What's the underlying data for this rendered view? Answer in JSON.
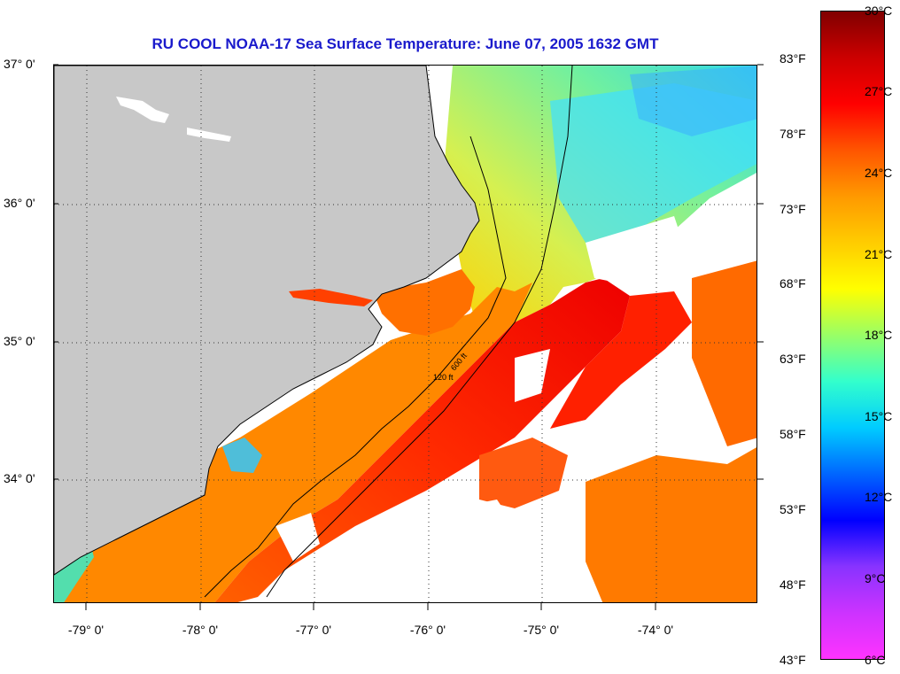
{
  "title": "RU COOL  NOAA-17  Sea Surface Temperature:  June 07, 2005 1632 GMT",
  "map": {
    "lat_labels": [
      "37° 0'",
      "36° 0'",
      "35° 0'",
      "34° 0'"
    ],
    "lon_labels": [
      "-79° 0'",
      "-78° 0'",
      "-77° 0'",
      "-76° 0'",
      "-75° 0'",
      "-74° 0'"
    ],
    "lat_range": [
      33.1,
      37.0
    ],
    "lon_range": [
      -79.3,
      -73.15
    ],
    "land_color": "#c8c8c8",
    "no_data_color": "#ffffff",
    "contour_labels": [
      "120 ft",
      "600 ft"
    ]
  },
  "colorbar": {
    "fahrenheit_labels": [
      "83°F",
      "78°F",
      "73°F",
      "68°F",
      "63°F",
      "58°F",
      "53°F",
      "48°F",
      "43°F"
    ],
    "celsius_labels": [
      "30°C",
      "27°C",
      "24°C",
      "21°C",
      "18°C",
      "15°C",
      "12°C",
      "9°C",
      "6°C"
    ],
    "celsius_range": [
      6,
      30
    ],
    "colors": [
      "#ff33ff",
      "#cc33ff",
      "#8833ff",
      "#0000ff",
      "#0066ff",
      "#00ccff",
      "#33ffcc",
      "#99ff66",
      "#ffff00",
      "#ffcc00",
      "#ff9900",
      "#ff5500",
      "#ff0000",
      "#cc0000",
      "#800000"
    ]
  }
}
